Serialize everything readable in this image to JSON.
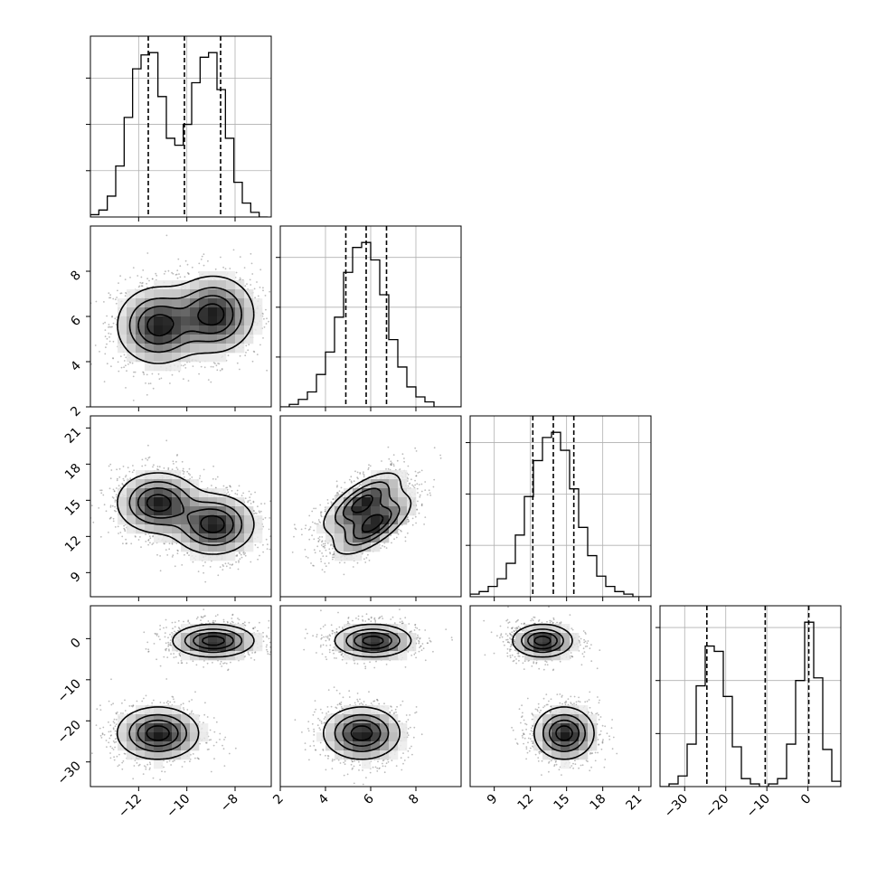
{
  "chart_data": {
    "type": "corner",
    "title": "",
    "dims": [
      {
        "range": [
          -14,
          -6.5
        ],
        "ticks": [
          -12,
          -10,
          -8
        ],
        "tick_labels": [
          "−12",
          "−10",
          "−8"
        ],
        "quantiles": [
          -11.6,
          -10.1,
          -8.6
        ],
        "hist": {
          "edges": [
            -14.0,
            -13.65,
            -13.3,
            -12.95,
            -12.6,
            -12.25,
            -11.9,
            -11.55,
            -11.2,
            -10.85,
            -10.5,
            -10.15,
            -9.8,
            -9.45,
            -9.1,
            -8.75,
            -8.4,
            -8.05,
            -7.7,
            -7.35,
            -7.0,
            -6.65
          ],
          "counts": [
            1,
            3,
            9,
            22,
            43,
            64,
            70,
            71,
            52,
            34,
            31,
            40,
            58,
            69,
            71,
            55,
            34,
            15,
            6,
            2,
            0
          ]
        }
      },
      {
        "range": [
          2,
          10
        ],
        "ticks": [
          2,
          4,
          6,
          8
        ],
        "tick_labels": [
          "2",
          "4",
          "6",
          "8"
        ],
        "quantiles": [
          4.9,
          5.8,
          6.7
        ],
        "hist": {
          "edges": [
            2.0,
            2.4,
            2.8,
            3.2,
            3.6,
            4.0,
            4.4,
            4.8,
            5.2,
            5.6,
            6.0,
            6.4,
            6.8,
            7.2,
            7.6,
            8.0,
            8.4,
            8.8,
            9.2,
            9.6,
            10.0
          ],
          "counts": [
            0,
            1,
            3,
            6,
            13,
            22,
            36,
            54,
            64,
            66,
            59,
            45,
            27,
            16,
            8,
            4,
            2,
            0,
            0,
            0
          ]
        }
      },
      {
        "range": [
          7,
          22
        ],
        "ticks": [
          9,
          12,
          15,
          18,
          21
        ],
        "tick_labels": [
          "9",
          "12",
          "15",
          "18",
          "21"
        ],
        "quantiles": [
          12.2,
          13.9,
          15.6
        ],
        "hist": {
          "edges": [
            7.0,
            7.75,
            8.5,
            9.25,
            10.0,
            10.75,
            11.5,
            12.25,
            13.0,
            13.75,
            14.5,
            15.25,
            16.0,
            16.75,
            17.5,
            18.25,
            19.0,
            19.75,
            20.5,
            21.25,
            22.0
          ],
          "counts": [
            1,
            2,
            4,
            7,
            13,
            24,
            39,
            53,
            62,
            64,
            57,
            42,
            27,
            16,
            8,
            4,
            2,
            1,
            0,
            0
          ]
        }
      },
      {
        "range": [
          -36,
          8
        ],
        "ticks": [
          -30,
          -20,
          -10,
          0
        ],
        "tick_labels": [
          "−30",
          "−20",
          "−10",
          "0"
        ],
        "quantiles": [
          -24.6,
          -10.4,
          0.2
        ],
        "hist": {
          "edges": [
            -36.0,
            -33.8,
            -31.6,
            -29.4,
            -27.2,
            -25.0,
            -22.8,
            -20.6,
            -18.4,
            -16.2,
            -14.0,
            -11.8,
            -9.6,
            -7.4,
            -5.2,
            -3.0,
            -0.8,
            1.4,
            3.6,
            5.8,
            8.0
          ],
          "counts": [
            0,
            1,
            4,
            16,
            38,
            53,
            51,
            34,
            15,
            3,
            1,
            0,
            1,
            3,
            16,
            40,
            62,
            41,
            14,
            2
          ]
        }
      }
    ],
    "modes": [
      {
        "mean": [
          -11.2,
          5.6,
          14.8,
          -23.0
        ],
        "sd": [
          0.85,
          0.85,
          1.25,
          3.2
        ]
      },
      {
        "mean": [
          -8.9,
          6.1,
          13.0,
          -0.5
        ],
        "sd": [
          0.85,
          0.85,
          1.25,
          2.0
        ]
      }
    ],
    "correlations": {
      "1-2": 0.7
    }
  }
}
